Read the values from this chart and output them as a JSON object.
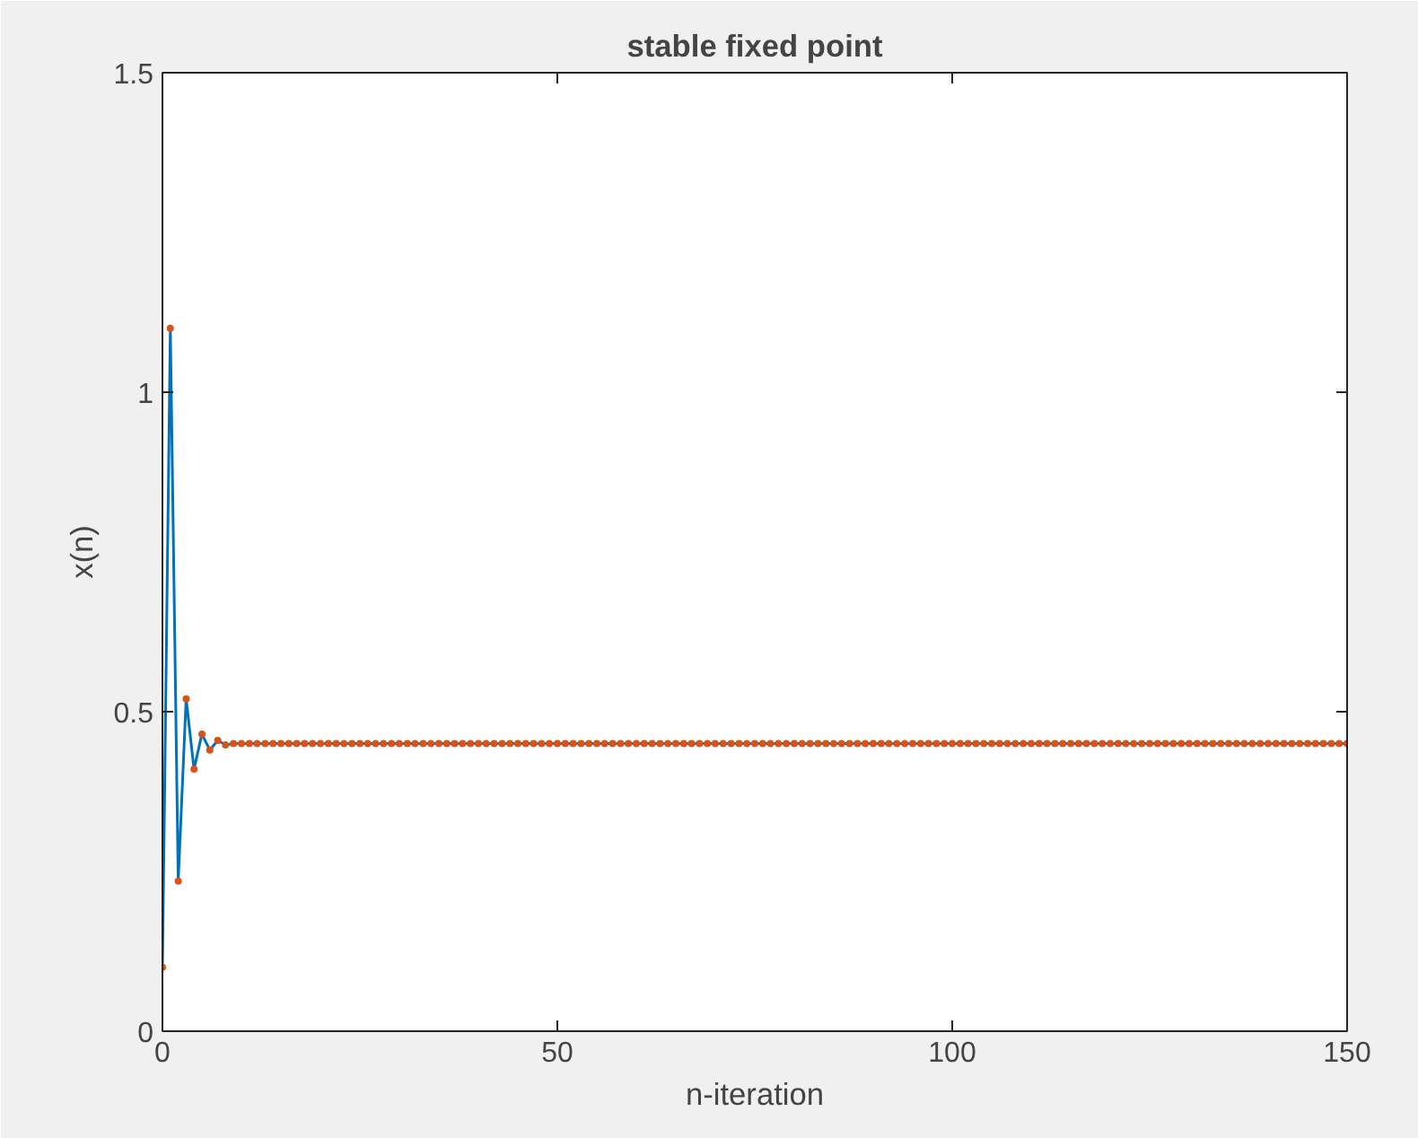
{
  "chart_data": {
    "type": "line",
    "title": "stable fixed point",
    "xlabel": "n-iteration",
    "ylabel": "x(n)",
    "x": [
      0,
      1,
      2,
      3,
      4,
      5,
      6,
      7,
      8,
      9,
      10,
      11,
      12,
      13,
      14,
      15,
      16,
      17,
      18,
      19,
      20,
      21,
      22,
      23,
      24,
      25,
      26,
      27,
      28,
      29,
      30,
      31,
      32,
      33,
      34,
      35,
      36,
      37,
      38,
      39,
      40,
      41,
      42,
      43,
      44,
      45,
      46,
      47,
      48,
      49,
      50,
      51,
      52,
      53,
      54,
      55,
      56,
      57,
      58,
      59,
      60,
      61,
      62,
      63,
      64,
      65,
      66,
      67,
      68,
      69,
      70,
      71,
      72,
      73,
      74,
      75,
      76,
      77,
      78,
      79,
      80,
      81,
      82,
      83,
      84,
      85,
      86,
      87,
      88,
      89,
      90,
      91,
      92,
      93,
      94,
      95,
      96,
      97,
      98,
      99,
      100,
      101,
      102,
      103,
      104,
      105,
      106,
      107,
      108,
      109,
      110,
      111,
      112,
      113,
      114,
      115,
      116,
      117,
      118,
      119,
      120,
      121,
      122,
      123,
      124,
      125,
      126,
      127,
      128,
      129,
      130,
      131,
      132,
      133,
      134,
      135,
      136,
      137,
      138,
      139,
      140,
      141,
      142,
      143,
      144,
      145,
      146,
      147,
      148,
      149,
      150
    ],
    "series": [
      {
        "color": "#0072bd",
        "marker": "none",
        "values": [
          0.1,
          1.1,
          0.235,
          0.52,
          0.41,
          0.465,
          0.44,
          0.455,
          0.448,
          0.45,
          0.45,
          0.45,
          0.45,
          0.45,
          0.45,
          0.45,
          0.45,
          0.45,
          0.45,
          0.45,
          0.45,
          0.45,
          0.45,
          0.45,
          0.45,
          0.45,
          0.45,
          0.45,
          0.45,
          0.45,
          0.45,
          0.45,
          0.45,
          0.45,
          0.45,
          0.45,
          0.45,
          0.45,
          0.45,
          0.45,
          0.45,
          0.45,
          0.45,
          0.45,
          0.45,
          0.45,
          0.45,
          0.45,
          0.45,
          0.45,
          0.45,
          0.45,
          0.45,
          0.45,
          0.45,
          0.45,
          0.45,
          0.45,
          0.45,
          0.45,
          0.45,
          0.45,
          0.45,
          0.45,
          0.45,
          0.45,
          0.45,
          0.45,
          0.45,
          0.45,
          0.45,
          0.45,
          0.45,
          0.45,
          0.45,
          0.45,
          0.45,
          0.45,
          0.45,
          0.45,
          0.45,
          0.45,
          0.45,
          0.45,
          0.45,
          0.45,
          0.45,
          0.45,
          0.45,
          0.45,
          0.45,
          0.45,
          0.45,
          0.45,
          0.45,
          0.45,
          0.45,
          0.45,
          0.45,
          0.45,
          0.45,
          0.45,
          0.45,
          0.45,
          0.45,
          0.45,
          0.45,
          0.45,
          0.45,
          0.45,
          0.45,
          0.45,
          0.45,
          0.45,
          0.45,
          0.45,
          0.45,
          0.45,
          0.45,
          0.45,
          0.45,
          0.45,
          0.45,
          0.45,
          0.45,
          0.45,
          0.45,
          0.45,
          0.45,
          0.45,
          0.45,
          0.45,
          0.45,
          0.45,
          0.45,
          0.45,
          0.45,
          0.45,
          0.45,
          0.45,
          0.45,
          0.45,
          0.45,
          0.45,
          0.45,
          0.45,
          0.45,
          0.45,
          0.45,
          0.45,
          0.45
        ]
      },
      {
        "type": "scatter",
        "color": "#d95319",
        "marker": "circle",
        "values": [
          0.1,
          1.1,
          0.235,
          0.52,
          0.41,
          0.465,
          0.44,
          0.455,
          0.448,
          0.45,
          0.45,
          0.45,
          0.45,
          0.45,
          0.45,
          0.45,
          0.45,
          0.45,
          0.45,
          0.45,
          0.45,
          0.45,
          0.45,
          0.45,
          0.45,
          0.45,
          0.45,
          0.45,
          0.45,
          0.45,
          0.45,
          0.45,
          0.45,
          0.45,
          0.45,
          0.45,
          0.45,
          0.45,
          0.45,
          0.45,
          0.45,
          0.45,
          0.45,
          0.45,
          0.45,
          0.45,
          0.45,
          0.45,
          0.45,
          0.45,
          0.45,
          0.45,
          0.45,
          0.45,
          0.45,
          0.45,
          0.45,
          0.45,
          0.45,
          0.45,
          0.45,
          0.45,
          0.45,
          0.45,
          0.45,
          0.45,
          0.45,
          0.45,
          0.45,
          0.45,
          0.45,
          0.45,
          0.45,
          0.45,
          0.45,
          0.45,
          0.45,
          0.45,
          0.45,
          0.45,
          0.45,
          0.45,
          0.45,
          0.45,
          0.45,
          0.45,
          0.45,
          0.45,
          0.45,
          0.45,
          0.45,
          0.45,
          0.45,
          0.45,
          0.45,
          0.45,
          0.45,
          0.45,
          0.45,
          0.45,
          0.45,
          0.45,
          0.45,
          0.45,
          0.45,
          0.45,
          0.45,
          0.45,
          0.45,
          0.45,
          0.45,
          0.45,
          0.45,
          0.45,
          0.45,
          0.45,
          0.45,
          0.45,
          0.45,
          0.45,
          0.45,
          0.45,
          0.45,
          0.45,
          0.45,
          0.45,
          0.45,
          0.45,
          0.45,
          0.45,
          0.45,
          0.45,
          0.45,
          0.45,
          0.45,
          0.45,
          0.45,
          0.45,
          0.45,
          0.45,
          0.45,
          0.45,
          0.45,
          0.45,
          0.45,
          0.45,
          0.45,
          0.45,
          0.45,
          0.45,
          0.45
        ]
      }
    ],
    "xlim": [
      0,
      150
    ],
    "ylim": [
      0,
      1.5
    ],
    "xticks": [
      0,
      50,
      100,
      150
    ],
    "yticks": [
      0,
      0.5,
      1,
      1.5
    ],
    "grid": false
  }
}
